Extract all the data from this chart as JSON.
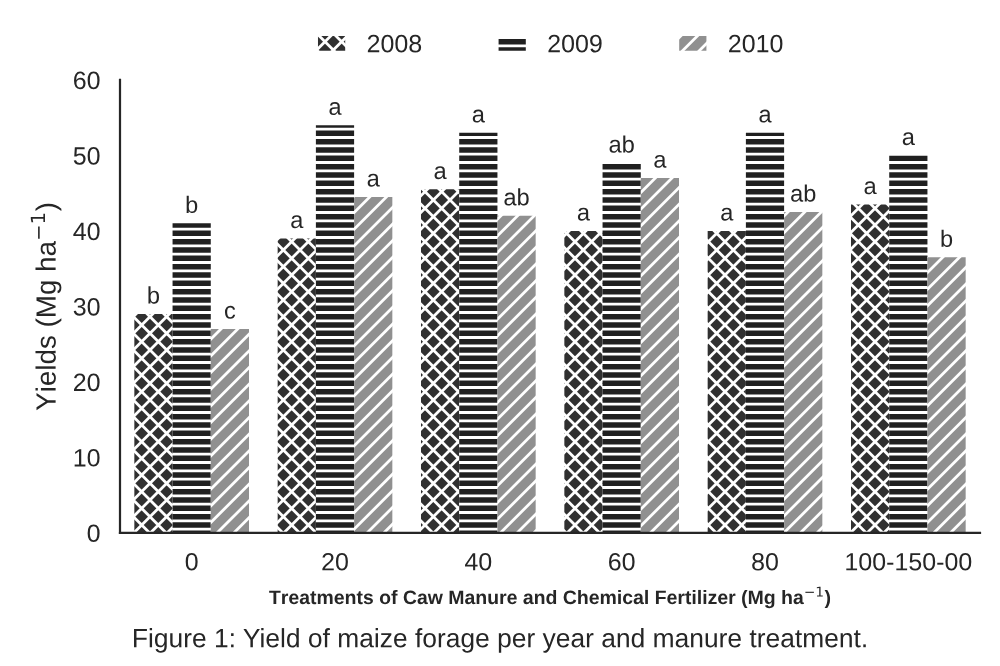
{
  "chart_data": {
    "type": "bar",
    "xlabel": "Treatments of Caw Manure and Chemical Fertilizer (Mg ha$^{−1}$)",
    "ylabel": "Yields (Mg ha$^{−1}$)",
    "categories": [
      "0",
      "20",
      "40",
      "60",
      "80",
      "100-150-00"
    ],
    "series": [
      {
        "name": "2008",
        "color": "#303030",
        "values": [
          29,
          39,
          45.5,
          40,
          40,
          43.5
        ],
        "value_labels": [
          "b",
          "a",
          "a",
          "a",
          "a",
          "a"
        ]
      },
      {
        "name": "2009",
        "color": "#202020",
        "values": [
          41,
          54,
          53,
          49,
          53,
          50
        ],
        "value_labels": [
          "b",
          "a",
          "a",
          "ab",
          "a",
          "a"
        ]
      },
      {
        "name": "2010",
        "color": "#909090",
        "values": [
          27,
          44.5,
          42,
          47,
          42.5,
          36.5
        ],
        "value_labels": [
          "c",
          "a",
          "ab",
          "a",
          "ab",
          "b"
        ]
      }
    ],
    "ylim": [
      0,
      60
    ],
    "yticks": [
      0,
      10,
      20,
      30,
      40,
      50,
      60
    ],
    "grid": false,
    "legend": "top",
    "annotations": [
      "Figure 1: Yield of maize forage per year and manure treatment."
    ]
  }
}
